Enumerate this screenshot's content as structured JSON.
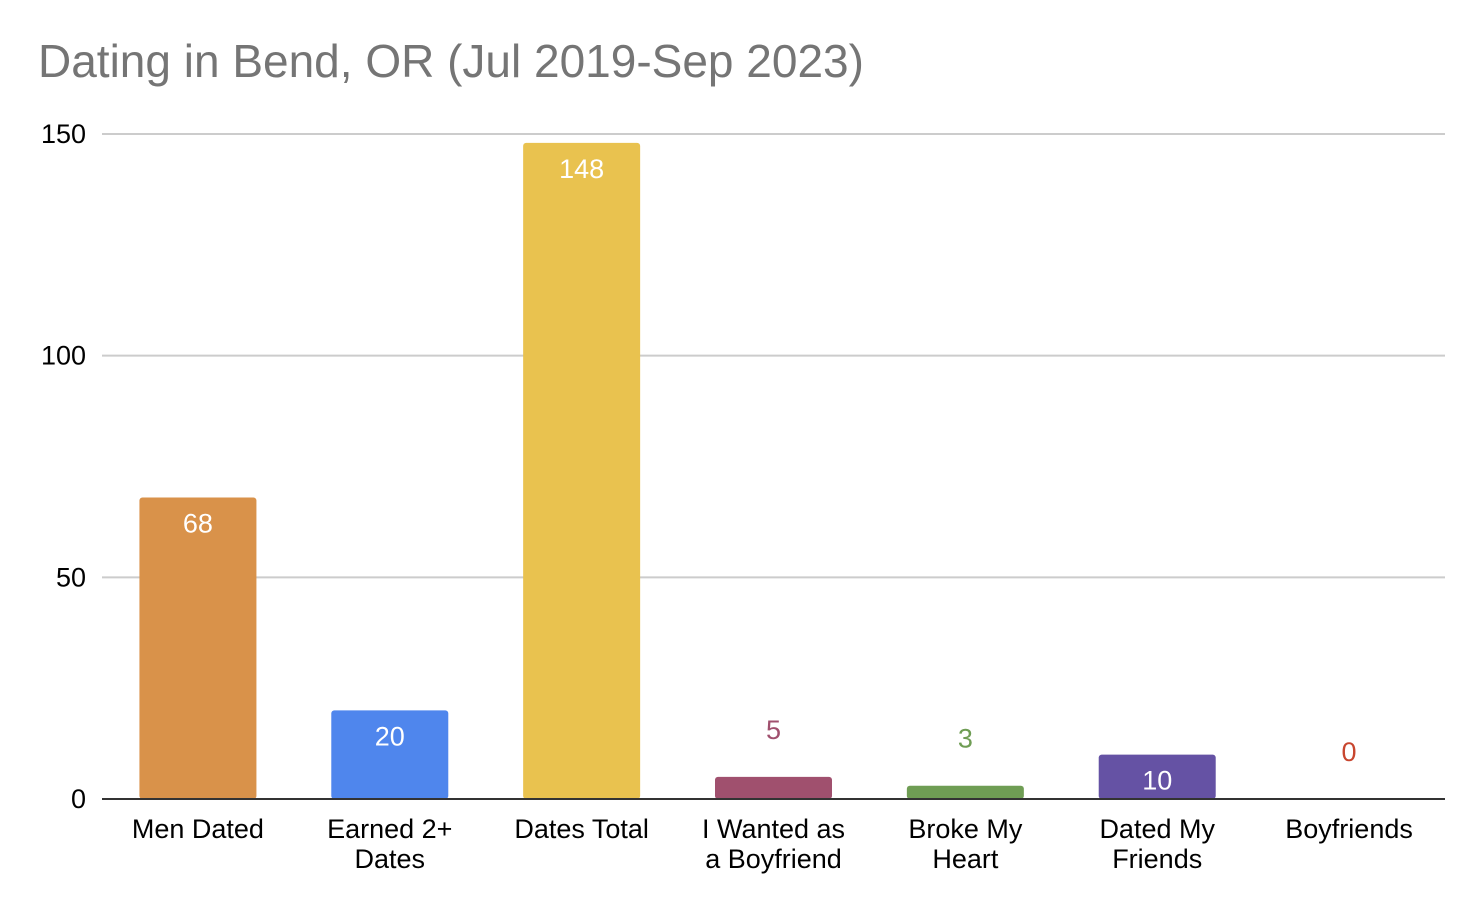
{
  "chart_data": {
    "type": "bar",
    "title": "Dating in Bend, OR (Jul 2019-Sep 2023)",
    "xlabel": "",
    "ylabel": "",
    "categories": [
      [
        "Men Dated"
      ],
      [
        "Earned 2+",
        "Dates"
      ],
      [
        "Dates Total"
      ],
      [
        "I Wanted as",
        "a Boyfriend"
      ],
      [
        "Broke My",
        "Heart"
      ],
      [
        "Dated My",
        "Friends"
      ],
      [
        "Boyfriends"
      ]
    ],
    "values": [
      68,
      20,
      148,
      5,
      3,
      10,
      0
    ],
    "colors": [
      "#d9924a",
      "#4f86ed",
      "#e9c24f",
      "#a0506e",
      "#6f9d54",
      "#6552a4",
      "#c8462f"
    ],
    "yticks": [
      0,
      50,
      100,
      150
    ],
    "ylim": [
      0,
      150
    ],
    "grid": true,
    "legend": "none",
    "data_labels": true
  }
}
